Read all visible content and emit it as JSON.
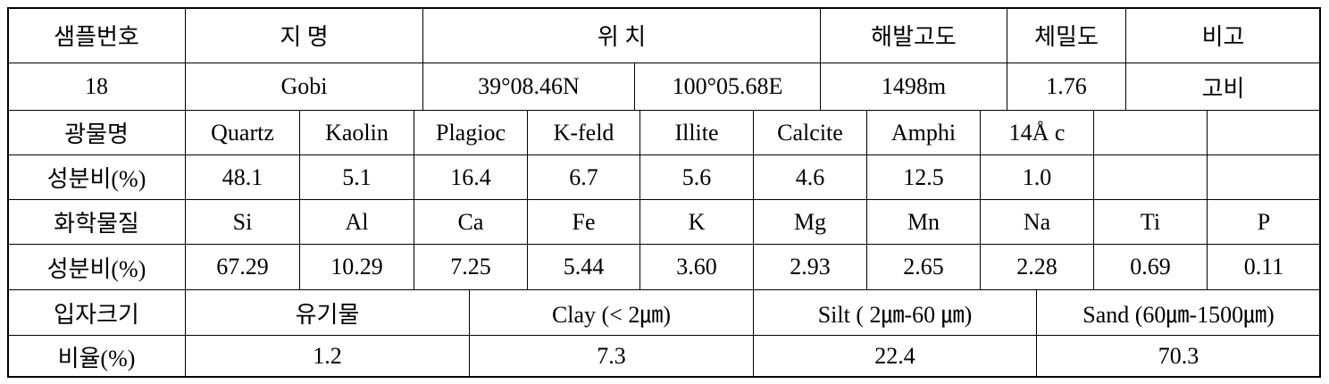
{
  "table": {
    "rows": [
      [
        "샘플번호",
        "지 명",
        "위 치",
        "해발고도",
        "체밀도",
        "비고"
      ],
      [
        "18",
        "Gobi",
        "39°08.46N",
        "100°05.68E",
        "1498m",
        "1.76",
        "고비"
      ],
      [
        "광물명",
        "Quartz",
        "Kaolin",
        "Plagioc",
        "K-feld",
        "Illite",
        "Calcite",
        "Amphi",
        "14Å c"
      ],
      [
        "성분비(%)",
        "48.1",
        "5.1",
        "16.4",
        "6.7",
        "5.6",
        "4.6",
        "12.5",
        "1.0"
      ],
      [
        "화학물질",
        "Si",
        "Al",
        "Ca",
        "Fe",
        "K",
        "Mg",
        "Mn",
        "Na",
        "Ti",
        "P"
      ],
      [
        "성분비(%)",
        "67.29",
        "10.29",
        "7.25",
        "5.44",
        "3.60",
        "2.93",
        "2.65",
        "2.28",
        "0.69",
        "0.11"
      ],
      [
        "입자크기",
        "유기물",
        "Clay (< 2㎛)",
        "Silt ( 2㎛-60 ㎛)",
        "Sand (60㎛-1500㎛)"
      ],
      [
        "비율(%)",
        "1.2",
        "7.3",
        "22.4",
        "70.3"
      ]
    ]
  }
}
